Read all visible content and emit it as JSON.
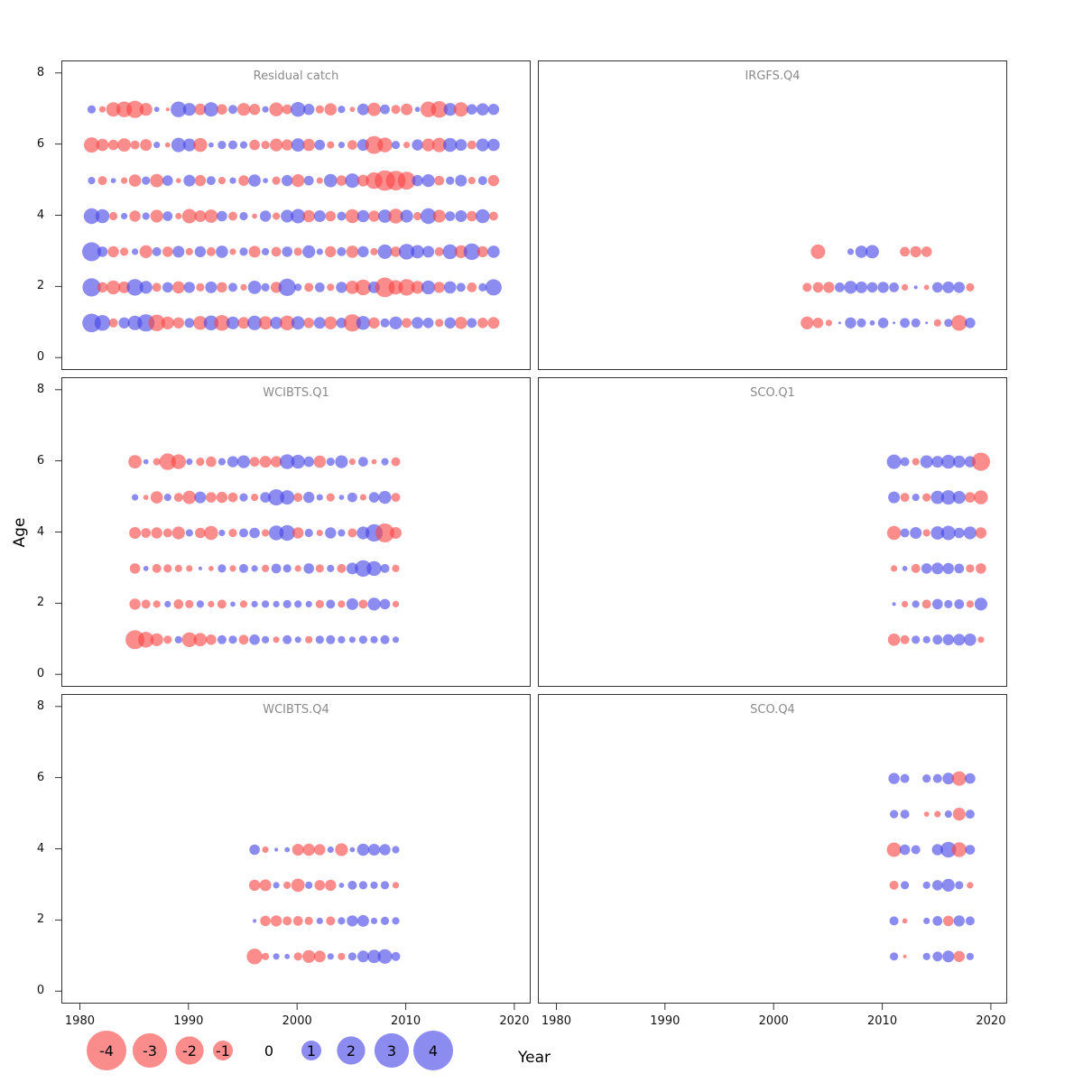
{
  "chart_data": {
    "type": "scatter",
    "subtype": "bubble-residual-matrix",
    "title": "",
    "xlabel": "Year",
    "ylabel": "Age",
    "xlim": [
      1978.3,
      2021.5
    ],
    "ylim": [
      -0.35,
      8.35
    ],
    "x_ticks": [
      1980,
      1990,
      2000,
      2010,
      2020
    ],
    "y_ticks": [
      0,
      2,
      4,
      6,
      8
    ],
    "legend_values": [
      -4,
      -3,
      -2,
      -1,
      0,
      1,
      2,
      3,
      4
    ],
    "colors": {
      "negative": "#f84646",
      "positive": "#4646e6",
      "opacity": 0.62
    },
    "panels": [
      {
        "title": "Residual catch",
        "rows": [
          {
            "age": 7,
            "start_year": 1981,
            "values": [
              0.5,
              -0.3,
              -1.5,
              -1.8,
              -2.2,
              -1.2,
              0.2,
              -0.1,
              1.8,
              1.2,
              -1.0,
              1.5,
              -0.8,
              0.6,
              -1.2,
              -0.9,
              0.3,
              -1.4,
              -0.7,
              1.6,
              0.9,
              -0.5,
              -1.1,
              0.4,
              -0.2,
              1.0,
              -1.3,
              0.7,
              -0.6,
              -1.0,
              0.2,
              -1.8,
              -2.0,
              1.2,
              -1.5,
              0.8,
              1.1,
              0.9
            ]
          },
          {
            "age": 6,
            "start_year": 1981,
            "values": [
              -1.7,
              -1.1,
              -0.8,
              -1.3,
              -0.6,
              -1.0,
              0.3,
              -0.2,
              1.5,
              1.2,
              -1.4,
              0.2,
              0.5,
              0.6,
              0.4,
              -0.8,
              -0.5,
              -1.2,
              -0.9,
              1.3,
              -1.1,
              0.8,
              -0.4,
              0.3,
              -0.7,
              1.0,
              -2.3,
              -1.6,
              0.5,
              -0.3,
              0.9,
              -1.2,
              -1.5,
              1.4,
              1.0,
              -0.6,
              1.2,
              1.1
            ]
          },
          {
            "age": 5,
            "start_year": 1981,
            "values": [
              0.4,
              -0.6,
              0.2,
              -0.3,
              -1.1,
              0.5,
              -1.3,
              0.8,
              -0.2,
              1.0,
              -0.9,
              0.6,
              -0.4,
              0.3,
              -0.8,
              1.1,
              0.2,
              -0.5,
              0.9,
              -1.2,
              0.7,
              -0.3,
              1.3,
              -0.8,
              1.5,
              -1.0,
              -2.0,
              -3.0,
              -2.8,
              -2.3,
              0.9,
              1.2,
              -0.7,
              0.5,
              1.0,
              -0.4,
              0.6,
              -0.9
            ]
          },
          {
            "age": 4,
            "start_year": 1981,
            "values": [
              1.8,
              1.4,
              -0.5,
              0.3,
              -0.9,
              0.4,
              -1.2,
              0.7,
              -0.3,
              -1.5,
              -1.0,
              -1.3,
              0.8,
              -0.6,
              0.5,
              -0.2,
              0.9,
              -0.4,
              1.2,
              1.5,
              -1.1,
              1.0,
              -0.8,
              0.6,
              -1.4,
              1.1,
              -0.9,
              1.3,
              -1.6,
              1.2,
              -0.5,
              1.8,
              -1.2,
              0.7,
              1.0,
              -0.8,
              1.4,
              -0.6
            ]
          },
          {
            "age": 3,
            "start_year": 1981,
            "values": [
              2.6,
              0.8,
              -0.9,
              -0.5,
              0.3,
              -1.2,
              0.6,
              -0.8,
              1.0,
              -0.4,
              0.9,
              -0.6,
              1.1,
              -0.3,
              0.5,
              -1.0,
              0.4,
              -0.7,
              0.8,
              -0.5,
              1.2,
              0.3,
              -0.9,
              0.6,
              -1.1,
              0.9,
              -0.4,
              1.5,
              -0.8,
              1.8,
              1.3,
              1.0,
              -0.6,
              1.6,
              -1.2,
              2.0,
              -0.9,
              1.1
            ]
          },
          {
            "age": 2,
            "start_year": 1981,
            "values": [
              2.4,
              -0.8,
              -1.4,
              -1.0,
              2.0,
              1.2,
              -0.6,
              0.8,
              -1.1,
              0.9,
              -0.5,
              1.0,
              -0.8,
              0.6,
              -0.3,
              1.3,
              0.5,
              -0.9,
              2.2,
              0.4,
              -0.6,
              0.7,
              -0.4,
              0.9,
              -1.3,
              -1.8,
              1.0,
              -2.8,
              -1.5,
              -2.0,
              -1.2,
              1.4,
              -0.9,
              1.1,
              0.6,
              -0.7,
              0.5,
              1.9
            ]
          },
          {
            "age": 1,
            "start_year": 1981,
            "values": [
              2.5,
              1.8,
              -0.6,
              0.9,
              1.5,
              2.2,
              -2.0,
              -1.2,
              -0.9,
              0.7,
              -1.4,
              1.6,
              -1.8,
              1.2,
              -1.0,
              1.5,
              -1.3,
              1.1,
              -1.6,
              1.3,
              -0.8,
              1.0,
              -1.2,
              0.8,
              -2.2,
              1.4,
              -0.9,
              0.6,
              1.2,
              -0.7,
              1.0,
              0.8,
              -0.5,
              0.9,
              -1.1,
              0.7,
              -0.8,
              -1.0
            ]
          }
        ]
      },
      {
        "title": "IRGFS.Q4",
        "rows": [
          {
            "age": 3,
            "start_year": 2003,
            "values": [
              0,
              -1.5,
              0,
              0,
              0.3,
              1.1,
              1.3,
              0,
              0,
              -0.7,
              -0.9,
              -0.8,
              0,
              0,
              0,
              0
            ]
          },
          {
            "age": 2,
            "start_year": 2003,
            "values": [
              -0.6,
              -0.8,
              -0.9,
              0.7,
              1.2,
              1.0,
              0.8,
              0.9,
              0.7,
              -0.3,
              0.1,
              -0.2,
              0.8,
              1.0,
              0.9,
              -0.5
            ]
          },
          {
            "age": 1,
            "start_year": 2003,
            "values": [
              -1.2,
              -0.8,
              -0.3,
              0.05,
              0.9,
              0.6,
              0.2,
              0.8,
              0.05,
              0.7,
              0.6,
              0.05,
              -0.4,
              0.5,
              -1.8,
              0.8
            ]
          }
        ]
      },
      {
        "title": "WCIBTS.Q1",
        "rows": [
          {
            "age": 6,
            "start_year": 1985,
            "values": [
              -1.3,
              0.2,
              -0.4,
              -2.0,
              -1.6,
              0.3,
              -0.5,
              -0.8,
              0.4,
              0.9,
              1.2,
              -0.7,
              -1.0,
              -0.9,
              1.6,
              1.4,
              0.8,
              -1.1,
              0.5,
              1.2,
              -0.3,
              0.7,
              -0.2,
              0.4,
              -0.6
            ]
          },
          {
            "age": 5,
            "start_year": 1985,
            "values": [
              0.3,
              -0.2,
              -1.1,
              0.4,
              -0.6,
              -1.3,
              1.0,
              -0.8,
              -0.9,
              -0.7,
              0.5,
              -0.4,
              0.8,
              1.9,
              1.5,
              -0.6,
              0.9,
              0.3,
              -0.5,
              0.2,
              0.7,
              -0.3,
              0.8,
              1.2,
              -0.6
            ]
          },
          {
            "age": 4,
            "start_year": 1985,
            "values": [
              -1.0,
              -0.7,
              -0.9,
              -0.6,
              -1.2,
              0.4,
              -0.8,
              -1.4,
              0.3,
              -0.5,
              0.6,
              0.8,
              -0.4,
              1.6,
              1.8,
              -0.9,
              0.5,
              -0.3,
              0.9,
              0.4,
              -0.6,
              1.2,
              2.2,
              -2.6,
              -1.0
            ]
          },
          {
            "age": 3,
            "start_year": 1985,
            "values": [
              -0.8,
              0.2,
              -0.6,
              -0.5,
              -0.4,
              -0.3,
              0.1,
              -0.2,
              0.5,
              -0.3,
              0.6,
              0.3,
              -0.4,
              0.7,
              0.5,
              -0.3,
              0.8,
              -0.5,
              0.4,
              -0.6,
              1.0,
              2.0,
              1.6,
              0.6,
              -0.4
            ]
          },
          {
            "age": 2,
            "start_year": 1985,
            "values": [
              -0.9,
              -0.6,
              -0.4,
              0.3,
              -0.7,
              -0.5,
              0.4,
              -0.3,
              -0.6,
              0.2,
              -0.4,
              0.3,
              0.4,
              0.3,
              0.5,
              0.4,
              0.3,
              -0.5,
              0.6,
              -0.4,
              1.0,
              -0.6,
              1.2,
              0.8,
              -0.3
            ]
          },
          {
            "age": 1,
            "start_year": 1985,
            "values": [
              -2.6,
              -1.8,
              -1.2,
              -0.5,
              0.4,
              -1.6,
              -1.3,
              -0.8,
              0.6,
              0.5,
              -0.7,
              0.8,
              0.4,
              -0.3,
              0.6,
              0.3,
              -0.4,
              0.5,
              0.6,
              0.4,
              0.3,
              0.5,
              0.4,
              0.6,
              0.3
            ]
          }
        ]
      },
      {
        "title": "SCO.Q1",
        "rows": [
          {
            "age": 6,
            "start_year": 2011,
            "values": [
              1.5,
              0.6,
              -0.4,
              1.2,
              1.0,
              1.4,
              1.1,
              0.9,
              -2.4
            ]
          },
          {
            "age": 5,
            "start_year": 2011,
            "values": [
              1.0,
              -0.6,
              0.4,
              -0.5,
              1.3,
              1.5,
              1.2,
              -0.8,
              -1.4
            ]
          },
          {
            "age": 4,
            "start_year": 2011,
            "values": [
              -1.4,
              0.6,
              1.0,
              -0.4,
              1.3,
              1.5,
              0.8,
              1.2,
              -0.9
            ]
          },
          {
            "age": 3,
            "start_year": 2011,
            "values": [
              -0.3,
              0.2,
              -0.6,
              0.8,
              1.0,
              0.9,
              0.7,
              -0.5,
              -0.8
            ]
          },
          {
            "age": 2,
            "start_year": 2011,
            "values": [
              0.1,
              -0.3,
              0.4,
              -0.6,
              0.8,
              0.5,
              0.7,
              -0.4,
              1.2
            ]
          },
          {
            "age": 1,
            "start_year": 2011,
            "values": [
              -1.1,
              -0.6,
              0.5,
              0.4,
              0.7,
              0.9,
              1.0,
              1.1,
              -0.3
            ]
          }
        ]
      },
      {
        "title": "WCIBTS.Q4",
        "rows": [
          {
            "age": 4,
            "start_year": 1996,
            "values": [
              0.8,
              -0.3,
              0.1,
              0.2,
              -1.0,
              -1.1,
              -0.9,
              0.3,
              -1.2,
              0.2,
              1.1,
              1.0,
              0.9,
              0.4
            ]
          },
          {
            "age": 3,
            "start_year": 1996,
            "values": [
              -0.9,
              -1.0,
              0.3,
              -0.4,
              -1.3,
              0.4,
              -0.8,
              -0.9,
              0.2,
              0.6,
              0.5,
              0.4,
              0.5,
              -0.3
            ]
          },
          {
            "age": 2,
            "start_year": 1996,
            "values": [
              0.1,
              -0.8,
              -0.9,
              -0.6,
              -0.7,
              -0.5,
              0.3,
              -0.6,
              0.4,
              0.9,
              1.0,
              0.3,
              0.5,
              0.4
            ]
          },
          {
            "age": 1,
            "start_year": 1996,
            "values": [
              -1.8,
              -0.4,
              0.3,
              0.2,
              -0.5,
              -1.2,
              -1.0,
              0.3,
              -0.4,
              0.5,
              1.0,
              1.3,
              1.5,
              0.6
            ]
          }
        ]
      },
      {
        "title": "SCO.Q4",
        "rows": [
          {
            "age": 6,
            "start_year": 2011,
            "values": [
              0.9,
              0.6,
              0,
              0.5,
              0.6,
              1.0,
              -1.5,
              0.8
            ]
          },
          {
            "age": 5,
            "start_year": 2011,
            "values": [
              0.5,
              0.6,
              0,
              -0.2,
              -0.3,
              0.4,
              -1.2,
              0.6
            ]
          },
          {
            "age": 4,
            "start_year": 2011,
            "values": [
              -1.5,
              0.8,
              0.6,
              0,
              0.9,
              1.8,
              -1.6,
              0.7
            ]
          },
          {
            "age": 3,
            "start_year": 2011,
            "values": [
              -0.6,
              0.5,
              0,
              0.4,
              0.8,
              1.2,
              0.5,
              -0.3
            ]
          },
          {
            "age": 2,
            "start_year": 2011,
            "values": [
              0.6,
              -0.2,
              0,
              0.3,
              0.7,
              -0.8,
              0.9,
              0.6
            ]
          },
          {
            "age": 1,
            "start_year": 2011,
            "values": [
              0.5,
              -0.1,
              0,
              0.4,
              0.7,
              1.0,
              -0.9,
              0.4
            ]
          }
        ]
      }
    ]
  }
}
